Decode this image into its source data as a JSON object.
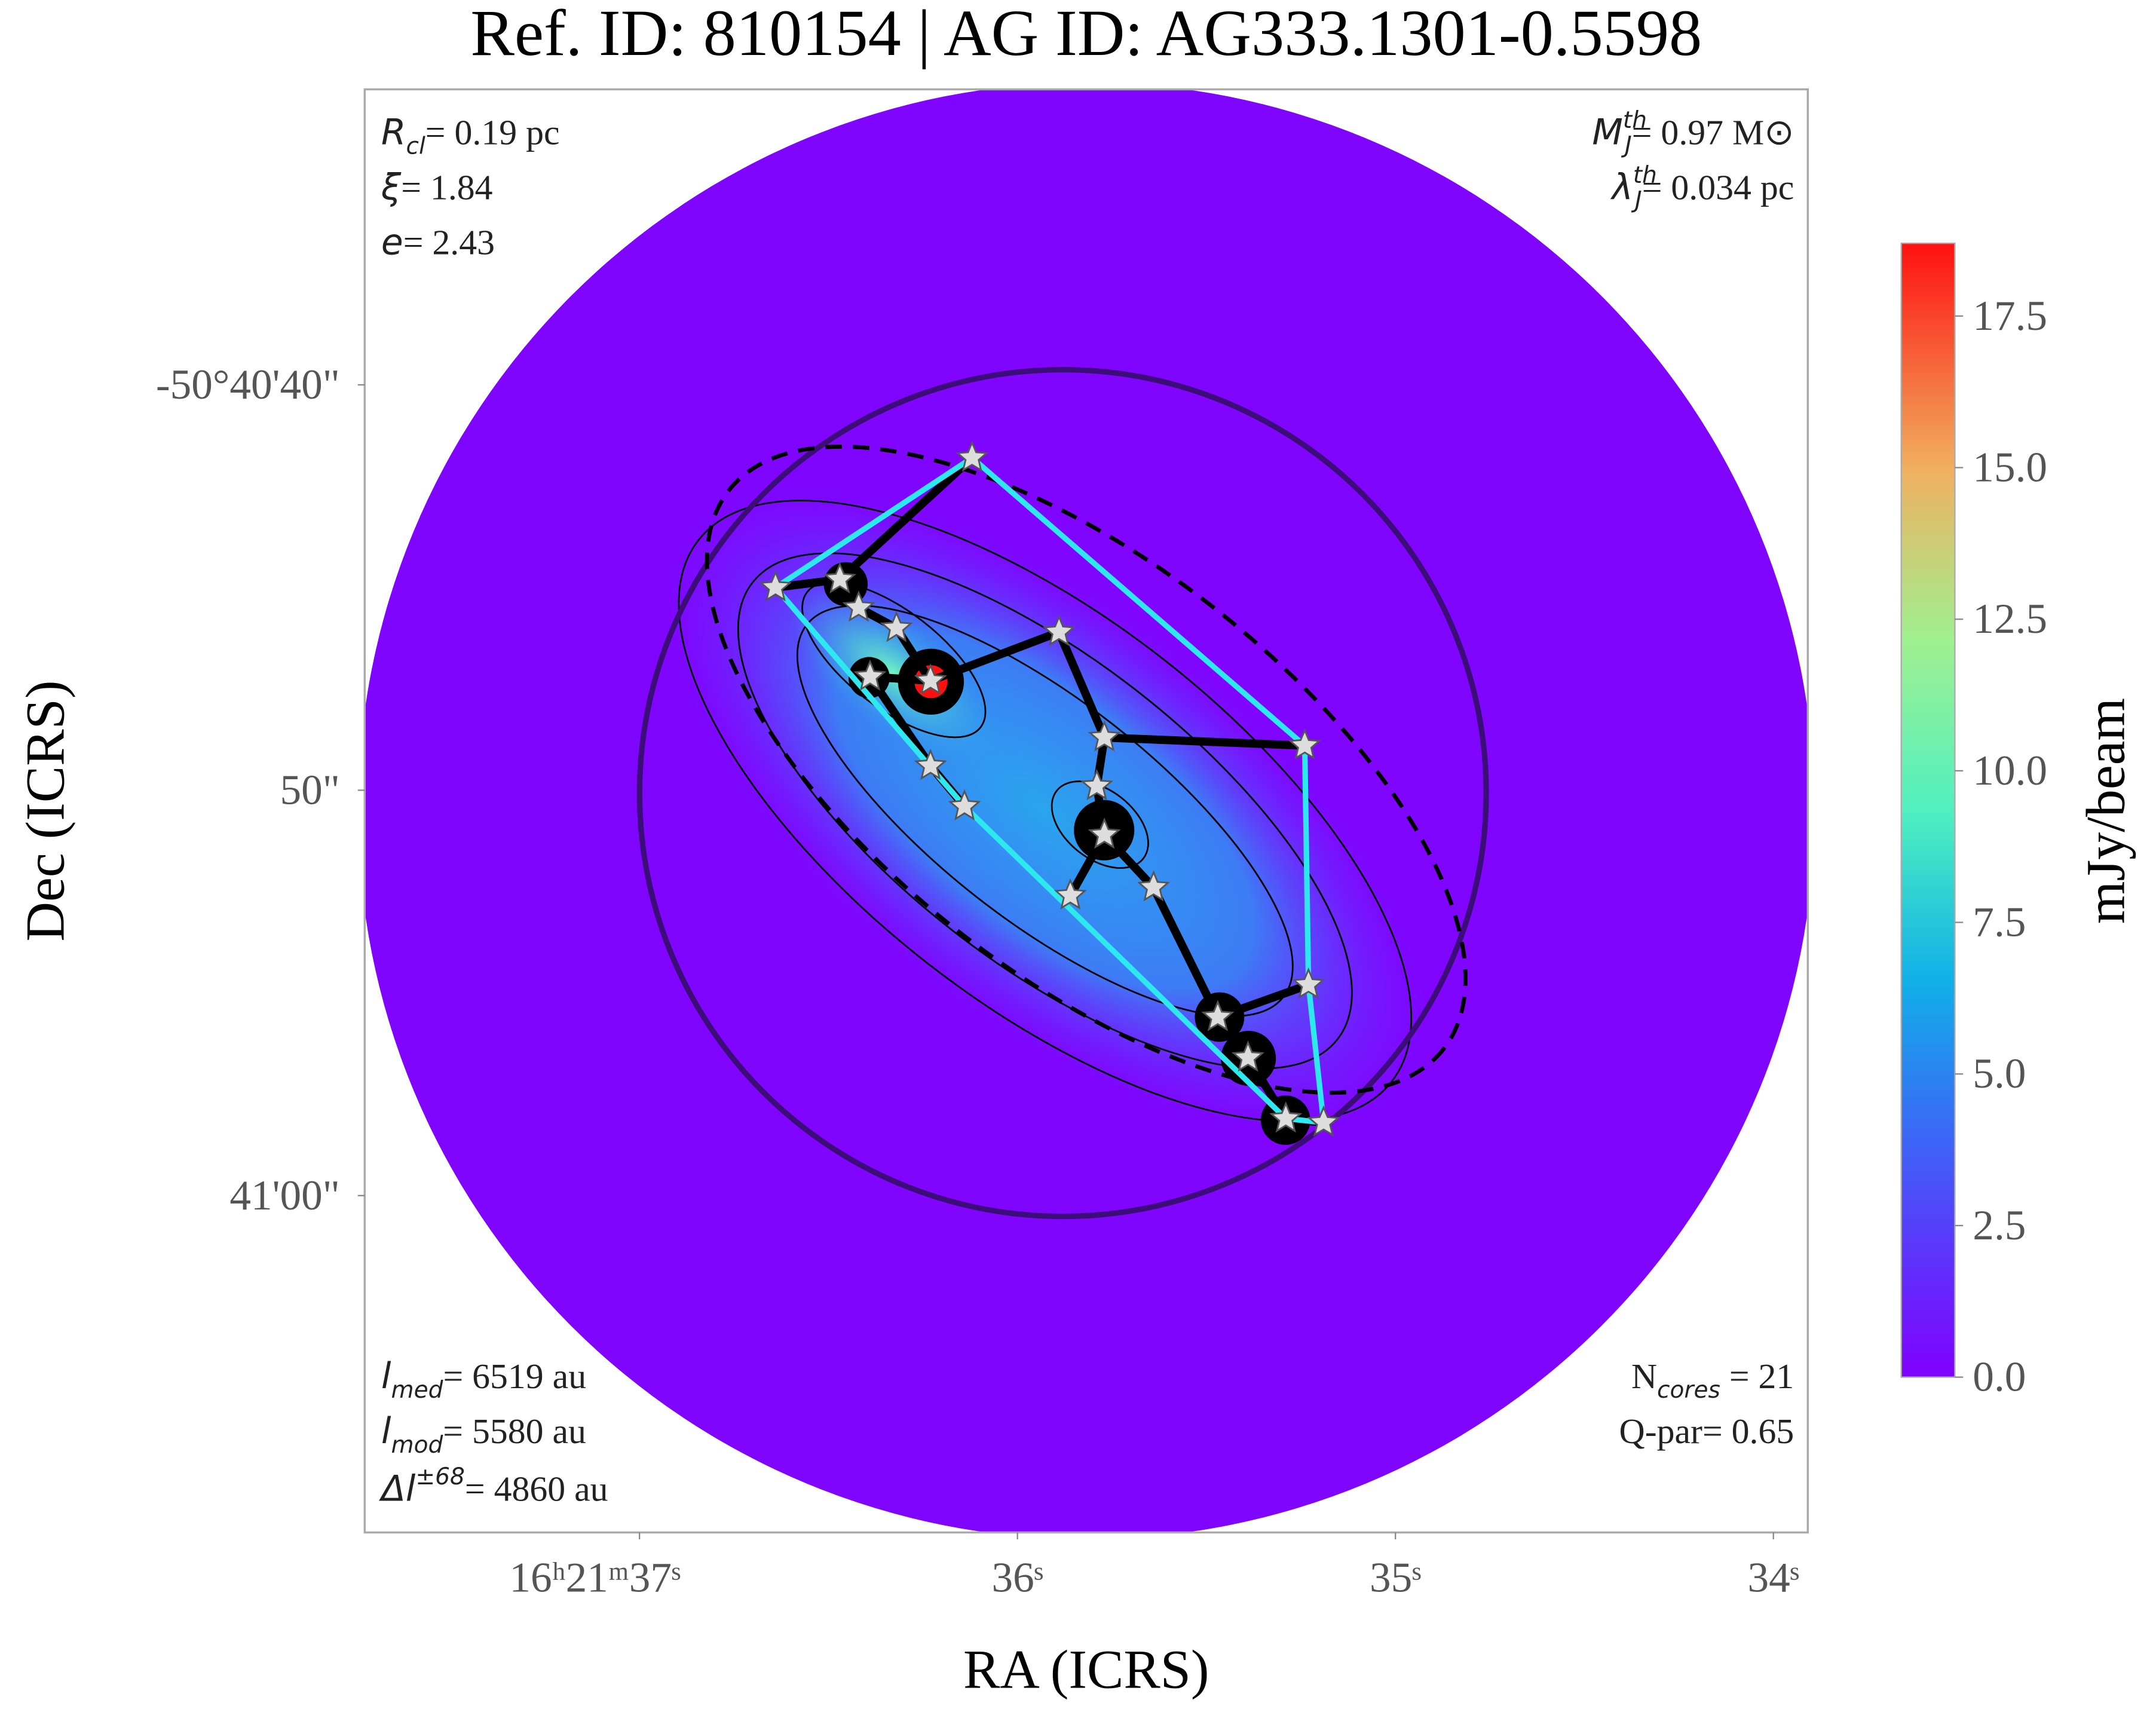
{
  "chart_data": {
    "type": "image",
    "title": "Ref. ID: 810154 | AG ID: AG333.1301-0.5598",
    "x_label": "RA (ICRS)",
    "y_label": "Dec (ICRS)",
    "xlim": [
      37.727,
      33.909
    ],
    "ylim": [
      32.71,
      68.31
    ],
    "xticks": [
      {
        "value": 37,
        "label": "16ʰ21ᵐ37ˢ"
      },
      {
        "value": 36,
        "label": "36ˢ"
      },
      {
        "value": 35,
        "label": "35ˢ"
      },
      {
        "value": 34,
        "label": "34ˢ"
      }
    ],
    "yticks": [
      {
        "value": 40,
        "label": "-50°40'40\""
      },
      {
        "value": 50,
        "label": "50\""
      },
      {
        "value": 60,
        "label": "41'00\""
      }
    ],
    "colorbar": {
      "label": "mJy/beam",
      "clim": [
        0,
        18.7
      ],
      "ticks": [
        {
          "value": 0,
          "label": "0.0"
        },
        2.5,
        {
          "value": 5,
          "label": "5.0"
        },
        7.5,
        {
          "value": 10,
          "label": "10.0"
        },
        12.5,
        {
          "value": 15,
          "label": "15.0"
        },
        17.5
      ]
    },
    "cores": {
      "ra": [
        36.12,
        36.64,
        36.47,
        36.42,
        36.32,
        36.39,
        36.23,
        35.89,
        35.77,
        35.24,
        35.79,
        36.23,
        36.14,
        35.77,
        35.64,
        35.86,
        35.23,
        35.47,
        35.39,
        35.29,
        35.19
      ],
      "dec": [
        41.8,
        45.0,
        44.8,
        45.5,
        46.0,
        47.2,
        47.3,
        46.1,
        48.7,
        48.9,
        49.9,
        49.4,
        50.4,
        51.1,
        52.4,
        52.6,
        54.8,
        55.6,
        56.6,
        58.1,
        58.2
      ]
    },
    "mst_edges": [
      [
        0,
        2
      ],
      [
        1,
        2
      ],
      [
        2,
        3
      ],
      [
        3,
        4
      ],
      [
        4,
        6
      ],
      [
        5,
        6
      ],
      [
        6,
        7
      ],
      [
        7,
        8
      ],
      [
        8,
        9
      ],
      [
        8,
        10
      ],
      [
        10,
        13
      ],
      [
        13,
        15
      ],
      [
        13,
        14
      ],
      [
        14,
        17
      ],
      [
        17,
        16
      ],
      [
        17,
        18
      ],
      [
        18,
        19
      ],
      [
        19,
        20
      ],
      [
        5,
        11
      ],
      [
        11,
        12
      ]
    ],
    "hull": [
      0,
      9,
      16,
      20,
      19,
      12,
      1,
      0
    ],
    "annotations": [
      {
        "main": "R",
        "sub": "cl",
        "rest": "= 0.19 pc"
      },
      {
        "main": "ξ",
        "rest": "= 1.84"
      },
      {
        "main": "e",
        "rest": "= 2.43"
      },
      {
        "main": "M",
        "sub": "J",
        "sup": "th",
        "rest": "= 0.97 M⊙"
      },
      {
        "main": "λ",
        "sub": "J",
        "sup": "th",
        "rest": "= 0.034 pc"
      },
      {
        "main": "l",
        "sub": "med",
        "rest": "= 6519 au"
      },
      {
        "main": "l",
        "sub": "mod",
        "rest": "= 5580 au"
      },
      {
        "main": "Δl",
        "sup": "±68",
        "rest": "= 4860 au"
      },
      {
        "main": "N",
        "sub": "cores",
        "rest": " = 21",
        "italic": false
      },
      {
        "main": "Q-par",
        "rest": "= 0.65",
        "italic": false
      }
    ]
  }
}
